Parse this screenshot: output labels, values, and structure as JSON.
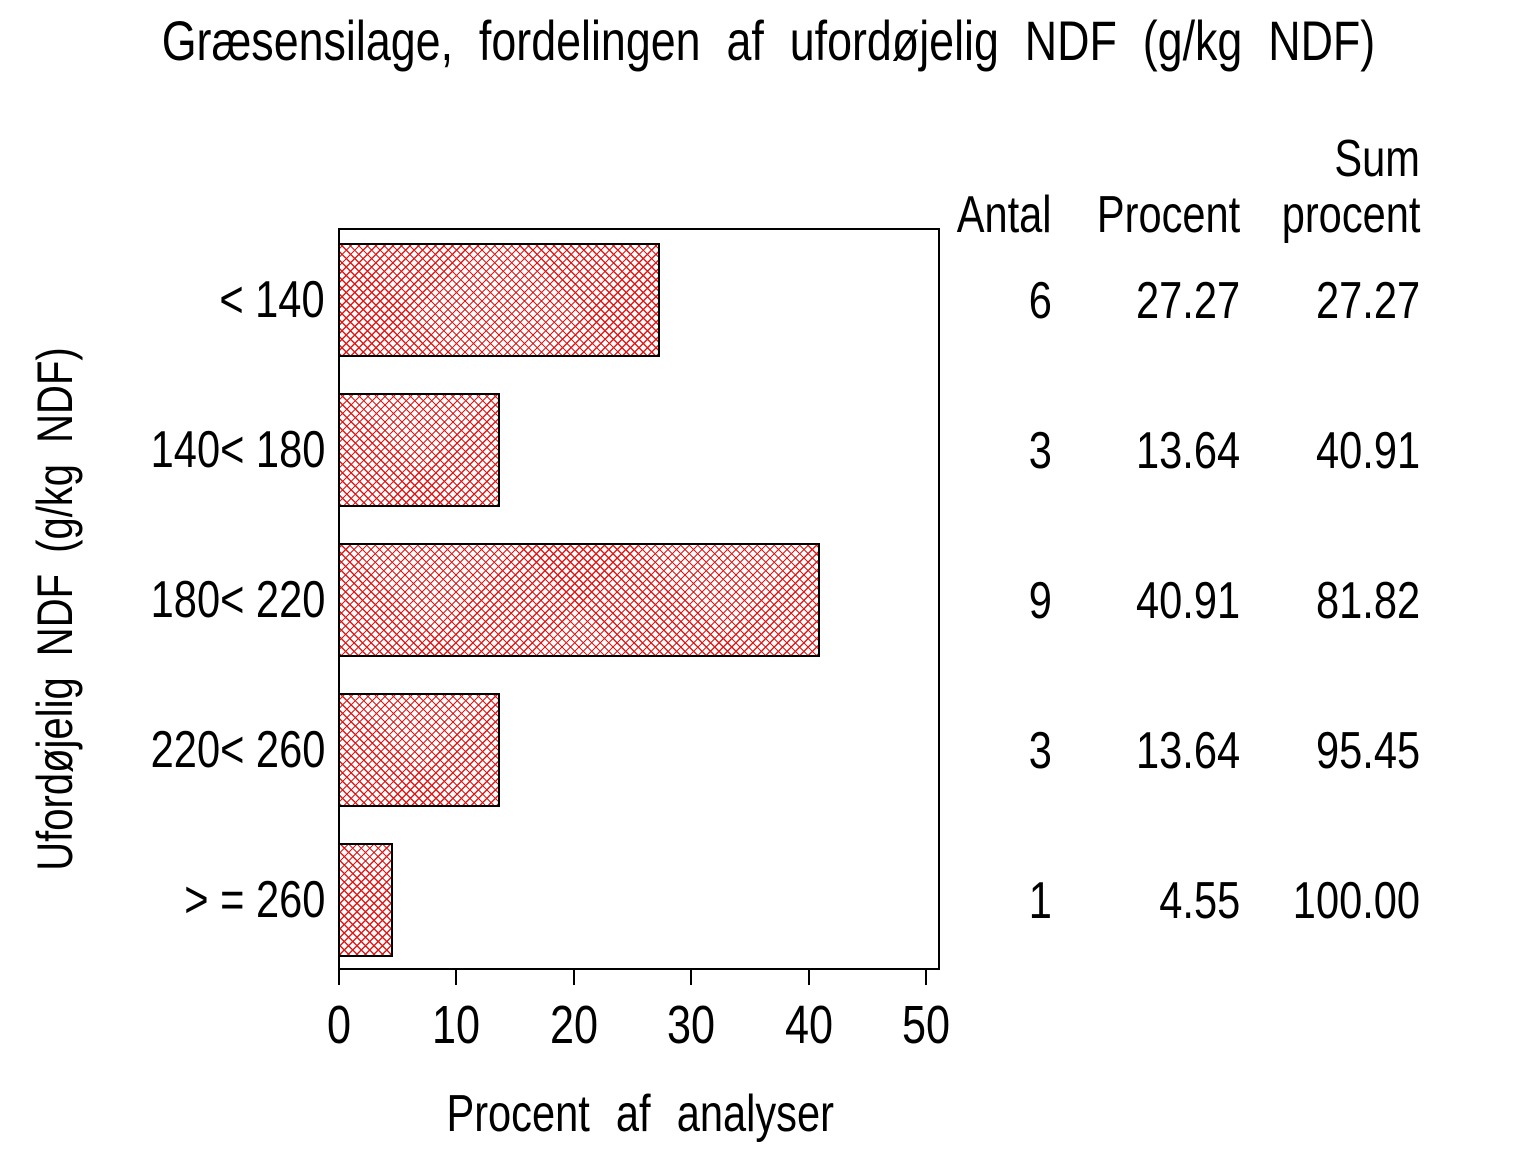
{
  "chart_data": {
    "type": "bar",
    "orientation": "horizontal",
    "title": "Græsensilage, fordelingen af ufordøjelig NDF (g/kg NDF)",
    "xlabel": "Procent af analyser",
    "ylabel": "Ufordøjelig NDF (g/kg NDF)",
    "categories": [
      "< 140",
      "140< 180",
      "180< 220",
      "220< 260",
      "> = 260"
    ],
    "values": [
      27.27,
      13.64,
      40.91,
      13.64,
      4.55
    ],
    "counts": [
      6,
      3,
      9,
      3,
      1
    ],
    "cumulative_percent": [
      27.27,
      40.91,
      81.82,
      95.45,
      100.0
    ],
    "xlim": [
      0,
      50
    ],
    "x_ticks": [
      0,
      10,
      20,
      30,
      40,
      50
    ],
    "grid": false,
    "bar_fill": "red-diagonal-crosshatch",
    "legend": "none"
  },
  "stats_table": {
    "headers": {
      "antal": "Antal",
      "procent": "Procent",
      "sum_line1": "Sum",
      "sum_line2": "procent"
    },
    "rows": [
      {
        "category": "< 140",
        "antal": "6",
        "procent": "27.27",
        "sum_procent": "27.27"
      },
      {
        "category": "140< 180",
        "antal": "3",
        "procent": "13.64",
        "sum_procent": "40.91"
      },
      {
        "category": "180< 220",
        "antal": "9",
        "procent": "40.91",
        "sum_procent": "81.82"
      },
      {
        "category": "220< 260",
        "antal": "3",
        "procent": "13.64",
        "sum_procent": "95.45"
      },
      {
        "category": "> = 260",
        "antal": "1",
        "procent": "4.55",
        "sum_procent": "100.00"
      }
    ]
  },
  "colors": {
    "bar_pattern": "#e21717",
    "bar_border": "#000000",
    "axis": "#000000",
    "text": "#000000",
    "background": "#ffffff"
  }
}
